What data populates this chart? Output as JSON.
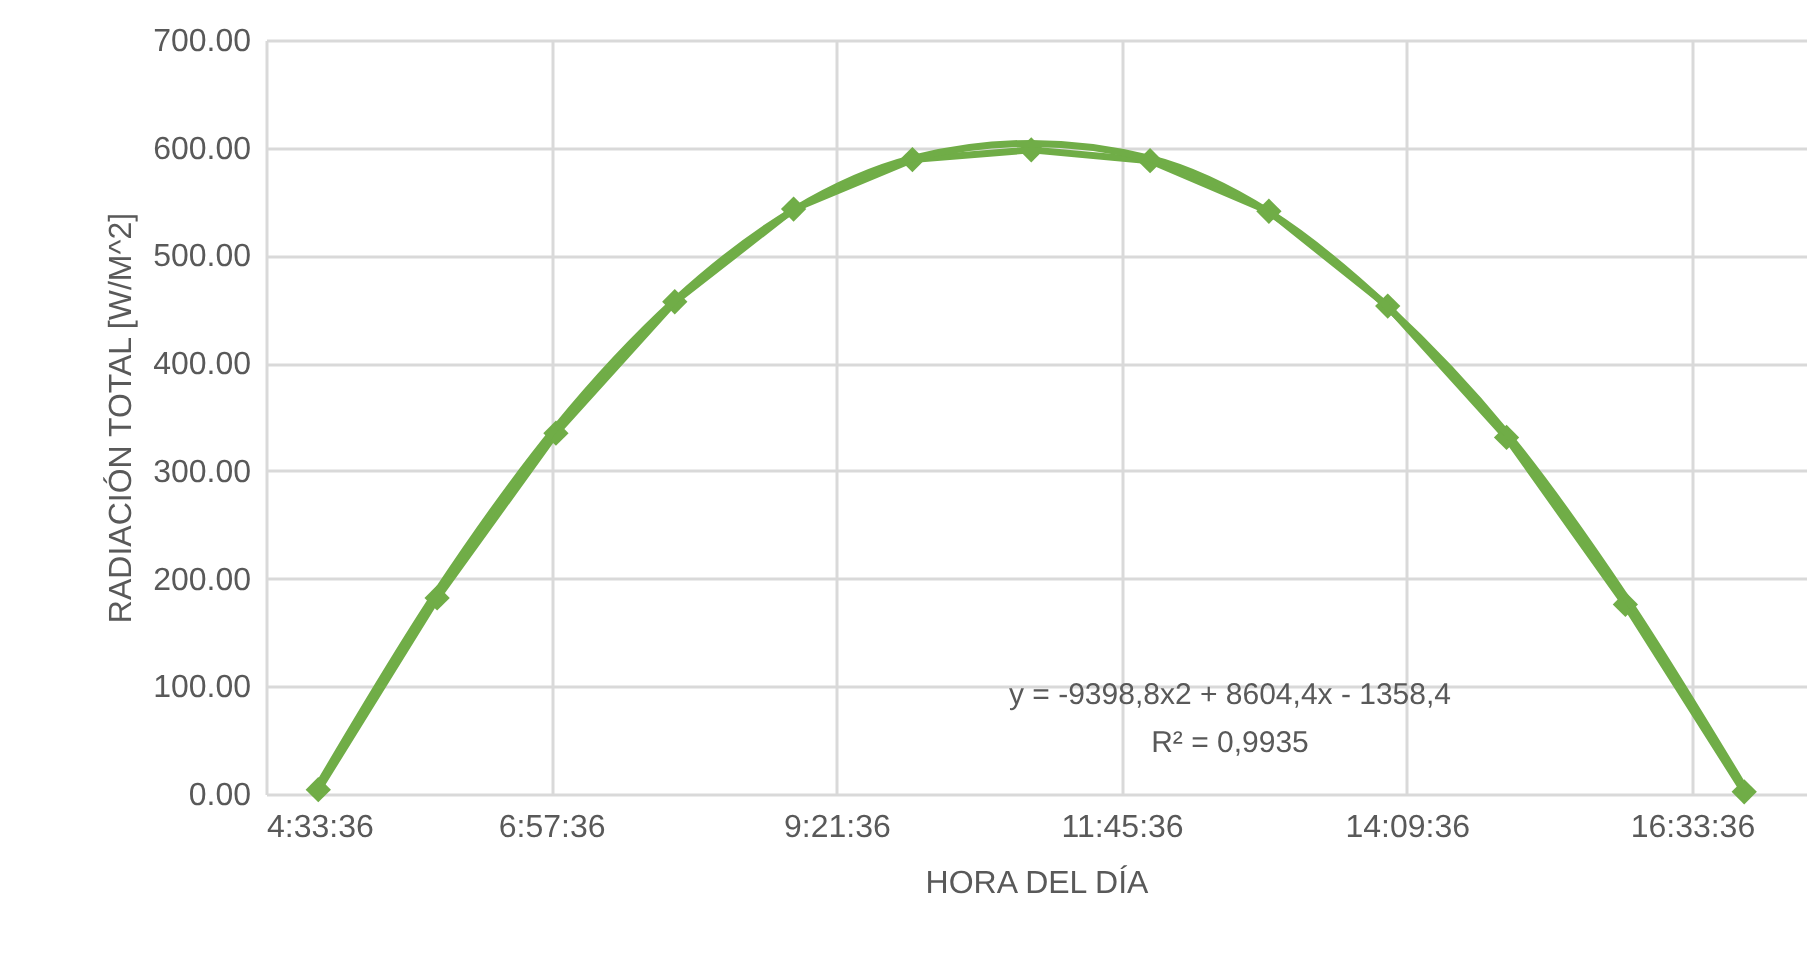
{
  "chart_data": {
    "type": "line",
    "xlabel": "HORA DEL DÍA",
    "ylabel": "RADIACIÓN TOTAL [W/M^2]",
    "x": [
      5,
      6,
      7,
      8,
      9,
      10,
      11,
      12,
      13,
      14,
      15,
      16,
      17
    ],
    "series": [
      {
        "color": "#70ad47",
        "marker": "diamond",
        "values": [
          4,
          182,
          335,
          457,
          543,
          589,
          598,
          588,
          541,
          453,
          331,
          176,
          2
        ]
      },
      {
        "type": "line",
        "color": "#70ad47",
        "marker": "none",
        "values": [
          8,
          188,
          340,
          458,
          542,
          590,
          604,
          590,
          540,
          452,
          335,
          183,
          6
        ]
      }
    ],
    "xlim": [
      4.56,
      17.52
    ],
    "xticks": [
      {
        "value": 4.56,
        "label": "4:33:36"
      },
      {
        "value": 6.96,
        "label": "6:57:36"
      },
      {
        "value": 9.36,
        "label": "9:21:36"
      },
      {
        "value": 11.76,
        "label": "11:45:36"
      },
      {
        "value": 14.16,
        "label": "14:09:36"
      },
      {
        "value": 16.56,
        "label": "16:33:36"
      }
    ],
    "ylim": [
      0,
      700
    ],
    "yticks": [
      {
        "value": 0,
        "label": "0.00"
      },
      {
        "value": 100,
        "label": "100.00"
      },
      {
        "value": 200,
        "label": "200.00"
      },
      {
        "value": 300,
        "label": "300.00"
      },
      {
        "value": 400,
        "label": "400.00"
      },
      {
        "value": 500,
        "label": "500.00"
      },
      {
        "value": 600,
        "label": "600.00"
      },
      {
        "value": 700,
        "label": "700.00"
      }
    ],
    "grid": true,
    "annotations": [
      "y = -9398,8x2 + 8604,4x - 1358,4",
      "R² = 0,9935"
    ]
  }
}
